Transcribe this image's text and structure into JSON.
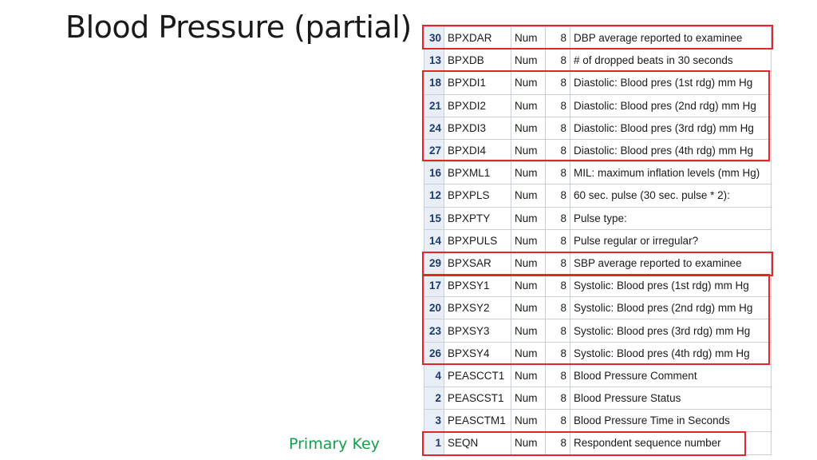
{
  "slide": {
    "title": "Blood Pressure (partial)",
    "primary_key_label": "Primary Key",
    "highlight_color": "#e3262b",
    "primary_key_color": "#13a04a"
  },
  "table": {
    "rows": [
      {
        "num": "30",
        "name": "BPXDAR",
        "type": "Num",
        "len": "8",
        "label": "DBP average reported to examinee"
      },
      {
        "num": "13",
        "name": "BPXDB",
        "type": "Num",
        "len": "8",
        "label": "# of dropped beats in 30 seconds"
      },
      {
        "num": "18",
        "name": "BPXDI1",
        "type": "Num",
        "len": "8",
        "label": "Diastolic: Blood pres (1st rdg) mm Hg"
      },
      {
        "num": "21",
        "name": "BPXDI2",
        "type": "Num",
        "len": "8",
        "label": "Diastolic: Blood pres (2nd rdg) mm Hg"
      },
      {
        "num": "24",
        "name": "BPXDI3",
        "type": "Num",
        "len": "8",
        "label": "Diastolic: Blood pres (3rd rdg) mm Hg"
      },
      {
        "num": "27",
        "name": "BPXDI4",
        "type": "Num",
        "len": "8",
        "label": "Diastolic: Blood pres (4th rdg) mm Hg"
      },
      {
        "num": "16",
        "name": "BPXML1",
        "type": "Num",
        "len": "8",
        "label": "MIL: maximum inflation levels (mm Hg)"
      },
      {
        "num": "12",
        "name": "BPXPLS",
        "type": "Num",
        "len": "8",
        "label": "60 sec. pulse (30 sec. pulse * 2):"
      },
      {
        "num": "15",
        "name": "BPXPTY",
        "type": "Num",
        "len": "8",
        "label": "Pulse type:"
      },
      {
        "num": "14",
        "name": "BPXPULS",
        "type": "Num",
        "len": "8",
        "label": "Pulse regular or irregular?"
      },
      {
        "num": "29",
        "name": "BPXSAR",
        "type": "Num",
        "len": "8",
        "label": "SBP average reported to examinee"
      },
      {
        "num": "17",
        "name": "BPXSY1",
        "type": "Num",
        "len": "8",
        "label": "Systolic: Blood pres (1st rdg) mm Hg"
      },
      {
        "num": "20",
        "name": "BPXSY2",
        "type": "Num",
        "len": "8",
        "label": "Systolic: Blood pres (2nd rdg) mm Hg"
      },
      {
        "num": "23",
        "name": "BPXSY3",
        "type": "Num",
        "len": "8",
        "label": "Systolic: Blood pres (3rd rdg) mm Hg"
      },
      {
        "num": "26",
        "name": "BPXSY4",
        "type": "Num",
        "len": "8",
        "label": "Systolic: Blood pres (4th rdg) mm Hg"
      },
      {
        "num": "4",
        "name": "PEASCCT1",
        "type": "Num",
        "len": "8",
        "label": "Blood Pressure Comment"
      },
      {
        "num": "2",
        "name": "PEASCST1",
        "type": "Num",
        "len": "8",
        "label": "Blood Pressure Status"
      },
      {
        "num": "3",
        "name": "PEASCTM1",
        "type": "Num",
        "len": "8",
        "label": "Blood Pressure Time in Seconds"
      },
      {
        "num": "1",
        "name": "SEQN",
        "type": "Num",
        "len": "8",
        "label": "Respondent sequence number"
      }
    ]
  }
}
